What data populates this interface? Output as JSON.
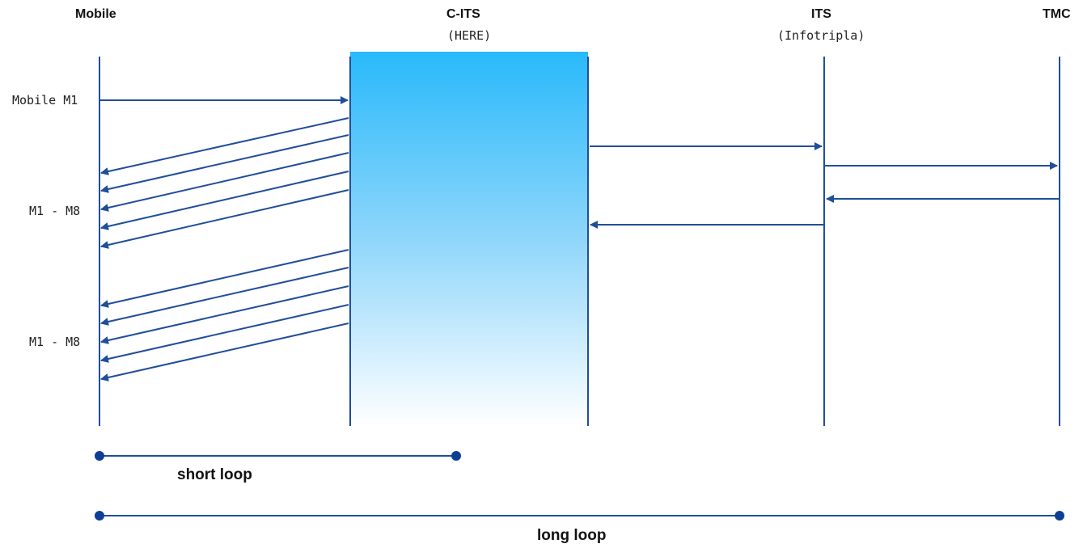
{
  "lanes": {
    "mobile": {
      "title": "Mobile"
    },
    "cits": {
      "title": "C-ITS",
      "subtitle": "(HERE)"
    },
    "its": {
      "title": "ITS",
      "subtitle": "(Infotripla)"
    },
    "tmc": {
      "title": "TMC"
    }
  },
  "messages": {
    "mobile_m1": "Mobile M1",
    "group_1": "M1 - M8",
    "group_2": "M1 - M8"
  },
  "loops": {
    "short": "short loop",
    "long": "long loop"
  },
  "colors": {
    "line": "#1f4e9b",
    "endpoint": "#0d3f96",
    "band_top": "#29b9fb",
    "band_bottom": "#ffffff"
  }
}
